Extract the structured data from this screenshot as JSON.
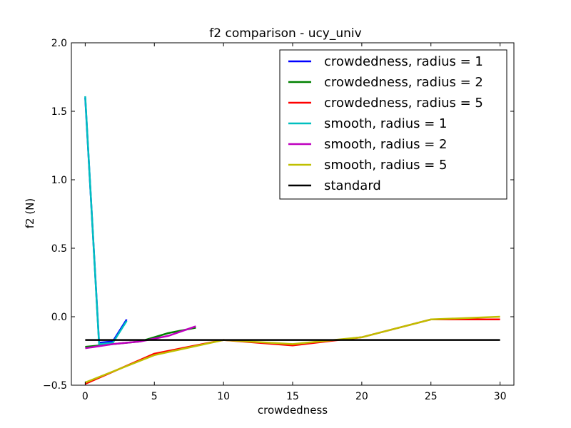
{
  "chart_data": {
    "type": "line",
    "title": "f2 comparison - ucy_univ",
    "xlabel": "crowdedness",
    "ylabel": "f2 (N)",
    "xlim": [
      -1,
      31
    ],
    "ylim": [
      -0.5,
      2.0
    ],
    "xticks": [
      0,
      5,
      10,
      15,
      20,
      25,
      30
    ],
    "xtick_labels": [
      "0",
      "5",
      "10",
      "15",
      "20",
      "25",
      "30"
    ],
    "yticks": [
      -0.5,
      0.0,
      0.5,
      1.0,
      1.5,
      2.0
    ],
    "ytick_labels": [
      "−0.5",
      "0.0",
      "0.5",
      "1.0",
      "1.5",
      "2.0"
    ],
    "grid": false,
    "legend_position": "top-right",
    "series": [
      {
        "name": "crowdedness, radius = 1",
        "color": "#0000ff",
        "x": [
          0,
          1,
          2,
          3
        ],
        "y": [
          1.6,
          -0.19,
          -0.18,
          -0.02
        ]
      },
      {
        "name": "crowdedness, radius = 2",
        "color": "#008000",
        "x": [
          0,
          2,
          4,
          6,
          8
        ],
        "y": [
          -0.22,
          -0.2,
          -0.18,
          -0.12,
          -0.08
        ]
      },
      {
        "name": "crowdedness, radius = 5",
        "color": "#ff0000",
        "x": [
          0,
          5,
          10,
          15,
          20,
          25,
          30
        ],
        "y": [
          -0.49,
          -0.27,
          -0.17,
          -0.21,
          -0.15,
          -0.02,
          -0.02
        ]
      },
      {
        "name": "smooth, radius = 1",
        "color": "#00bfbf",
        "x": [
          0,
          1,
          2,
          3
        ],
        "y": [
          1.61,
          -0.2,
          -0.19,
          -0.03
        ]
      },
      {
        "name": "smooth, radius = 2",
        "color": "#bf00bf",
        "x": [
          0,
          2,
          4,
          6,
          8
        ],
        "y": [
          -0.23,
          -0.2,
          -0.18,
          -0.14,
          -0.07
        ]
      },
      {
        "name": "smooth, radius = 5",
        "color": "#bfbf00",
        "x": [
          0,
          5,
          10,
          15,
          20,
          25,
          30
        ],
        "y": [
          -0.48,
          -0.28,
          -0.17,
          -0.2,
          -0.15,
          -0.02,
          0.0
        ]
      },
      {
        "name": "standard",
        "color": "#000000",
        "x": [
          0,
          30
        ],
        "y": [
          -0.17,
          -0.17
        ]
      }
    ]
  }
}
